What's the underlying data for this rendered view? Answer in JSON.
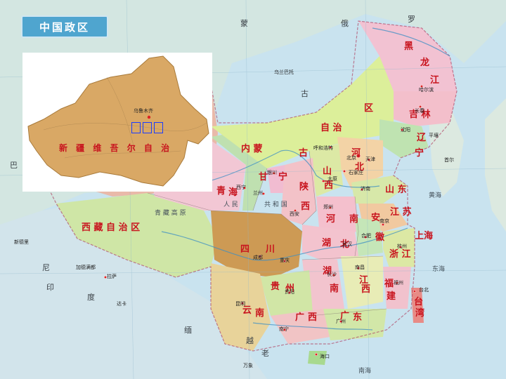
{
  "title": "中国政区",
  "inset": {
    "overlay_text": "",
    "box_count": 3,
    "labels": [
      {
        "text": "新 疆 维 吾 尔 自 治",
        "cls": "prov",
        "k": "a"
      },
      {
        "text": "乌鲁木齐",
        "cls": "city",
        "k": "b"
      }
    ]
  },
  "provinces": [
    {
      "text": "内 蒙",
      "k": "nm"
    },
    {
      "text": "古",
      "k": "gu"
    },
    {
      "text": "自 治",
      "k": "zz"
    },
    {
      "text": "区",
      "k": "qu"
    },
    {
      "text": "黑",
      "k": "hei"
    },
    {
      "text": "龙",
      "k": "long"
    },
    {
      "text": "江",
      "k": "jiang"
    },
    {
      "text": "吉 林",
      "k": "jl"
    },
    {
      "text": "辽",
      "k": "liao"
    },
    {
      "text": "宁",
      "k": "ning"
    },
    {
      "text": "河",
      "k": "hebei1"
    },
    {
      "text": "北",
      "k": "hebei2"
    },
    {
      "text": "山",
      "k": "shanxi1"
    },
    {
      "text": "西",
      "k": "shanxi2"
    },
    {
      "text": "山 东",
      "k": "sd"
    },
    {
      "text": "青",
      "k": "qh1"
    },
    {
      "text": "海",
      "k": "qh2"
    },
    {
      "text": "甘",
      "k": "gs"
    },
    {
      "text": "宁",
      "k": "nx"
    },
    {
      "text": "陕",
      "k": "sx1"
    },
    {
      "text": "西",
      "k": "sx2"
    },
    {
      "text": "河",
      "k": "hn1"
    },
    {
      "text": "南",
      "k": "hn2"
    },
    {
      "text": "安",
      "k": "ah1"
    },
    {
      "text": "徽",
      "k": "ah2"
    },
    {
      "text": "江 苏",
      "k": "js"
    },
    {
      "text": "西 藏 自 治 区",
      "k": "xz"
    },
    {
      "text": "四",
      "k": "sc1"
    },
    {
      "text": "川",
      "k": "sc2"
    },
    {
      "text": "湖",
      "k": "hb1"
    },
    {
      "text": "北",
      "k": "hb2"
    },
    {
      "text": "湖",
      "k": "hun1"
    },
    {
      "text": "南",
      "k": "hun2"
    },
    {
      "text": "浙 江",
      "k": "zj"
    },
    {
      "text": "江",
      "k": "jx1"
    },
    {
      "text": "西",
      "k": "jx2"
    },
    {
      "text": "福",
      "k": "fj1"
    },
    {
      "text": "建",
      "k": "fj2"
    },
    {
      "text": "贵",
      "k": "gz1"
    },
    {
      "text": "州",
      "k": "gz2"
    },
    {
      "text": "云",
      "k": "yn1"
    },
    {
      "text": "南",
      "k": "yn2"
    },
    {
      "text": "广",
      "k": "gx1"
    },
    {
      "text": "西",
      "k": "gx2"
    },
    {
      "text": "广",
      "k": "gd1"
    },
    {
      "text": "东",
      "k": "gd2"
    },
    {
      "text": "台",
      "k": "tw1"
    },
    {
      "text": "湾",
      "k": "tw2"
    },
    {
      "text": "上海",
      "k": "sh"
    }
  ],
  "cities": [
    {
      "text": "乌兰巴托",
      "k": "ulb"
    },
    {
      "text": "哈尔滨",
      "k": "hrb"
    },
    {
      "text": "长春",
      "k": "cc"
    },
    {
      "text": "沈阳",
      "k": "sy"
    },
    {
      "text": "北京",
      "k": "bj"
    },
    {
      "text": "天津",
      "k": "tj"
    },
    {
      "text": "石家庄",
      "k": "sjz"
    },
    {
      "text": "呼和浩特",
      "k": "hhht"
    },
    {
      "text": "太原",
      "k": "ty"
    },
    {
      "text": "济南",
      "k": "jn"
    },
    {
      "text": "银川",
      "k": "yc"
    },
    {
      "text": "兰州",
      "k": "lz"
    },
    {
      "text": "西宁",
      "k": "xn"
    },
    {
      "text": "西安",
      "k": "xa"
    },
    {
      "text": "郑州",
      "k": "zz2"
    },
    {
      "text": "南京",
      "k": "nj"
    },
    {
      "text": "合肥",
      "k": "hf"
    },
    {
      "text": "武汉",
      "k": "wh"
    },
    {
      "text": "杭州",
      "k": "hz"
    },
    {
      "text": "成都",
      "k": "cd"
    },
    {
      "text": "重庆",
      "k": "cq"
    },
    {
      "text": "长沙",
      "k": "cs"
    },
    {
      "text": "南昌",
      "k": "nc"
    },
    {
      "text": "福州",
      "k": "fz"
    },
    {
      "text": "贵阳",
      "k": "gy"
    },
    {
      "text": "昆明",
      "k": "km"
    },
    {
      "text": "南宁",
      "k": "nn"
    },
    {
      "text": "广州",
      "k": "gz"
    },
    {
      "text": "台北",
      "k": "tb"
    },
    {
      "text": "海口",
      "k": "hk"
    },
    {
      "text": "拉萨",
      "k": "ls"
    },
    {
      "text": "首尔",
      "k": "se"
    },
    {
      "text": "平壤",
      "k": "py"
    },
    {
      "text": "加德满都",
      "k": "kt"
    },
    {
      "text": "新德里",
      "k": "nd"
    },
    {
      "text": "达卡",
      "k": "dk"
    },
    {
      "text": "万象",
      "k": "vt"
    }
  ],
  "neighbors": [
    {
      "text": "蒙",
      "k": "mg1"
    },
    {
      "text": "古",
      "k": "mg2"
    },
    {
      "text": "俄",
      "k": "ru1"
    },
    {
      "text": "罗",
      "k": "ru2"
    },
    {
      "text": "印",
      "k": "in1"
    },
    {
      "text": "度",
      "k": "in2"
    },
    {
      "text": "尼",
      "k": "np"
    },
    {
      "text": "越",
      "k": "vn"
    },
    {
      "text": "老",
      "k": "la"
    },
    {
      "text": "缅",
      "k": "mm"
    },
    {
      "text": "巴",
      "k": "pk"
    }
  ],
  "geo": [
    {
      "text": "青 藏 高 原",
      "k": "qz"
    },
    {
      "text": "共 和 国",
      "k": "ghg"
    },
    {
      "text": "人 民",
      "k": "rm"
    },
    {
      "text": "黄海",
      "k": "hh"
    },
    {
      "text": "东海",
      "k": "dh"
    },
    {
      "text": "南海",
      "k": "nh"
    }
  ],
  "colors": {
    "sea": "#c9e3ef",
    "title_bg": "#4fa5cf",
    "label_red": "#c8141e",
    "inset_land": "#d9a865",
    "overlay_blue": "#1a3cff"
  }
}
